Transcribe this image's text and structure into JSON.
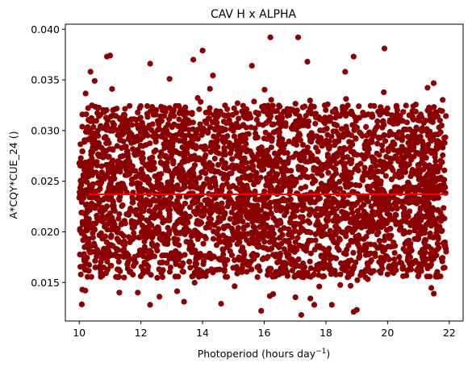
{
  "chart_data": {
    "type": "scatter",
    "title": "CAV H x ALPHA",
    "xlabel": "Photoperiod (hours day",
    "xlabel_sup": "−1",
    "xlabel_suffix": ")",
    "ylabel": "A*CQY*CUE_24 ()",
    "xlim": [
      9.55,
      22.45
    ],
    "ylim": [
      0.0112,
      0.0405
    ],
    "x_ticks": [
      10,
      12,
      14,
      16,
      18,
      20,
      22
    ],
    "x_tick_labels": [
      "10",
      "12",
      "14",
      "16",
      "18",
      "20",
      "22"
    ],
    "y_ticks": [
      0.015,
      0.02,
      0.025,
      0.03,
      0.035,
      0.04
    ],
    "y_tick_labels": [
      "0.015",
      "0.020",
      "0.025",
      "0.030",
      "0.035",
      "0.040"
    ],
    "grid": false,
    "legend": "none",
    "points": {
      "x_range": [
        10.0,
        21.9
      ],
      "y_center": 0.0237,
      "y_core_range": [
        0.0155,
        0.0325
      ],
      "color": "#8b0000"
    },
    "outliers": [
      {
        "x": 16.2,
        "y": 0.0392
      },
      {
        "x": 17.1,
        "y": 0.0392
      },
      {
        "x": 19.9,
        "y": 0.0381
      },
      {
        "x": 14.0,
        "y": 0.0379
      },
      {
        "x": 10.9,
        "y": 0.0373
      },
      {
        "x": 11.0,
        "y": 0.0374
      },
      {
        "x": 13.7,
        "y": 0.037
      },
      {
        "x": 12.3,
        "y": 0.0366
      },
      {
        "x": 17.4,
        "y": 0.0368
      },
      {
        "x": 18.9,
        "y": 0.0373
      },
      {
        "x": 15.6,
        "y": 0.0364
      },
      {
        "x": 10.5,
        "y": 0.0349
      },
      {
        "x": 21.7,
        "y": 0.031
      },
      {
        "x": 17.2,
        "y": 0.0118
      },
      {
        "x": 18.9,
        "y": 0.0121
      },
      {
        "x": 19.0,
        "y": 0.0123
      },
      {
        "x": 15.9,
        "y": 0.0122
      },
      {
        "x": 14.6,
        "y": 0.0129
      },
      {
        "x": 10.2,
        "y": 0.0142
      },
      {
        "x": 10.1,
        "y": 0.0143
      },
      {
        "x": 11.3,
        "y": 0.014
      },
      {
        "x": 11.9,
        "y": 0.014
      },
      {
        "x": 21.5,
        "y": 0.0139
      },
      {
        "x": 12.6,
        "y": 0.0136
      },
      {
        "x": 13.4,
        "y": 0.0131
      }
    ],
    "trend_line": {
      "x": [
        10.3,
        21.9
      ],
      "y": [
        0.0237,
        0.0237
      ],
      "color": "#ff0000"
    }
  }
}
